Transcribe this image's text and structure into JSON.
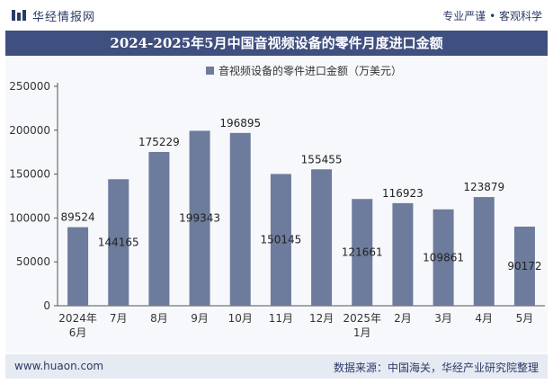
{
  "header": {
    "brand": "华经情报网",
    "tagline": "专业严谨 • 客观科学"
  },
  "footer": {
    "website": "www.huaon.com",
    "source": "数据来源：中国海关，华经产业研究院整理"
  },
  "chart_data": {
    "type": "bar",
    "title": "2024-2025年5月中国音视频设备的零件月度进口金额",
    "categories": [
      "2024年\n6月",
      "7月",
      "8月",
      "9月",
      "10月",
      "11月",
      "12月",
      "2025年\n1月",
      "2月",
      "3月",
      "4月",
      "5月"
    ],
    "series": [
      {
        "name": "音视频设备的零件进口金额（万美元）",
        "values": [
          89524,
          144165,
          175229,
          199343,
          196895,
          150145,
          155455,
          121661,
          116923,
          109861,
          123879,
          90172
        ],
        "color": "#6d7b9c"
      }
    ],
    "yticks": [
      "0",
      "50000",
      "100000",
      "150000",
      "200000",
      "250000"
    ],
    "ylim": [
      0,
      250000
    ],
    "legend_position": "top-center",
    "grid": false
  }
}
